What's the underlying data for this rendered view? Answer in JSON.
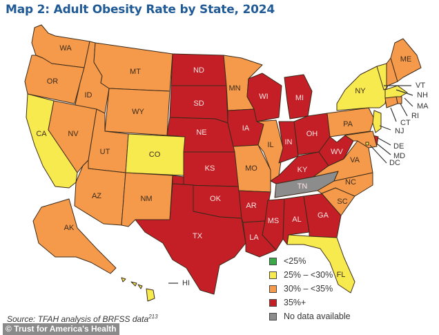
{
  "title": "Map 2: Adult Obesity Rate by State, 2024",
  "legend": [
    {
      "key": "lt25",
      "label": "<25%",
      "color": "#3aaa48"
    },
    {
      "key": "25to30",
      "label": "25% – <30%",
      "color": "#f7ea4f"
    },
    {
      "key": "30to35",
      "label": "30% – <35%",
      "color": "#f59a4a"
    },
    {
      "key": "35plus",
      "label": "35%+",
      "color": "#c41e26"
    },
    {
      "key": "nodata",
      "label": "No data available",
      "color": "#8c8c8c"
    }
  ],
  "states": {
    "WA": "30to35",
    "OR": "30to35",
    "CA": "25to30",
    "ID": "30to35",
    "NV": "30to35",
    "MT": "30to35",
    "WY": "30to35",
    "UT": "30to35",
    "AZ": "30to35",
    "CO": "25to30",
    "NM": "30to35",
    "ND": "35plus",
    "SD": "35plus",
    "NE": "35plus",
    "KS": "35plus",
    "OK": "35plus",
    "TX": "35plus",
    "MN": "30to35",
    "IA": "35plus",
    "MO": "30to35",
    "AR": "35plus",
    "LA": "35plus",
    "WI": "35plus",
    "IL": "30to35",
    "MI": "35plus",
    "IN": "35plus",
    "OH": "35plus",
    "KY": "35plus",
    "TN": "nodata",
    "MS": "35plus",
    "AL": "35plus",
    "GA": "35plus",
    "FL": "25to30",
    "SC": "30to35",
    "NC": "30to35",
    "VA": "30to35",
    "WV": "35plus",
    "PA": "30to35",
    "NY": "25to30",
    "VT": "25to30",
    "NH": "30to35",
    "ME": "30to35",
    "MA": "25to30",
    "RI": "30to35",
    "CT": "30to35",
    "NJ": "25to30",
    "DE": "35plus",
    "MD": "30to35",
    "DC": "25to30",
    "AK": "30to35",
    "HI": "25to30"
  },
  "external_labels": [
    "VT",
    "NH",
    "MA",
    "RI",
    "CT",
    "NJ",
    "DE",
    "MD",
    "DC",
    "HI"
  ],
  "source": {
    "text": "Source: TFAH analysis of BRFSS data",
    "footnote": "213"
  },
  "credit": "© Trust for America's Health"
}
